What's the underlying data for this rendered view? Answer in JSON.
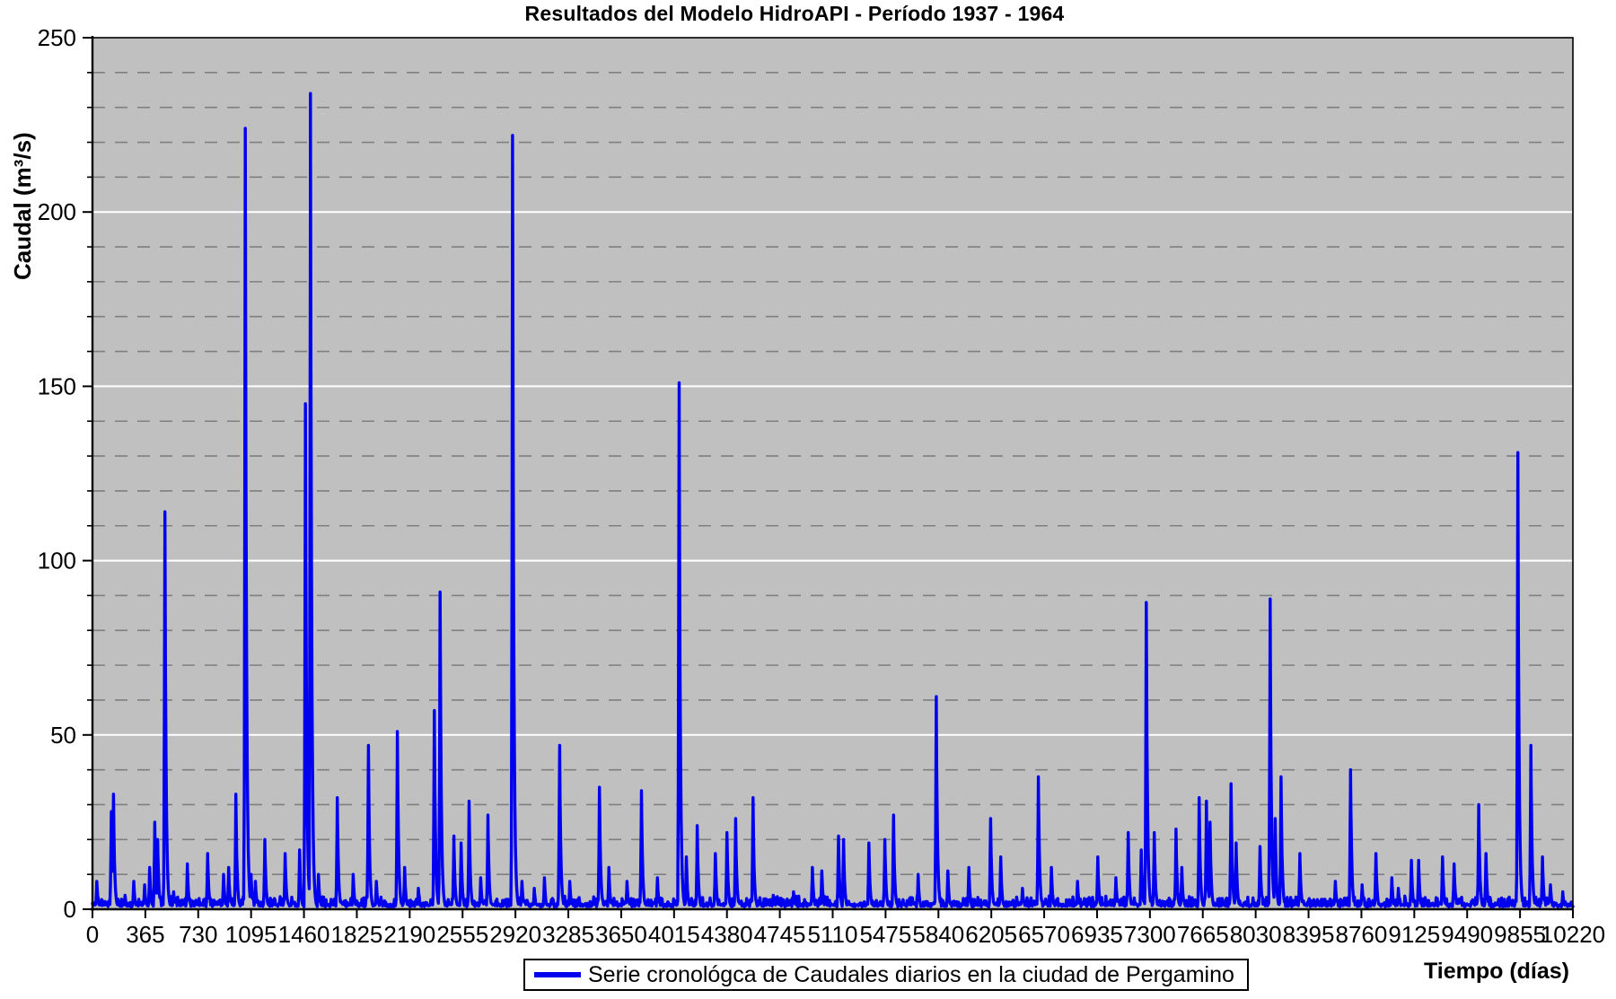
{
  "title": "Resultados del Modelo HidroAPI - Período 1937 - 1964",
  "y_axis": {
    "label": "Caudal (m³/s)",
    "min": 0,
    "max": 250,
    "major_step": 50,
    "minor_step": 10
  },
  "x_axis": {
    "label": "Tiempo (días)",
    "min": 0,
    "max": 10220,
    "major_step": 365
  },
  "legend": {
    "label": "Serie cronológca de Caudales diarios en la ciudad de Pergamino"
  },
  "colors": {
    "series": "#0000EE",
    "plot_background": "#C0C0C0",
    "major_gridline": "#FFFFFF",
    "minor_gridline": "#7F7F7F",
    "axis": "#000000",
    "page_background": "#FFFFFF",
    "text": "#000000"
  },
  "chart_data": {
    "type": "line",
    "title": "Resultados del Modelo HidroAPI - Período 1937 - 1964",
    "xlabel": "Tiempo (días)",
    "ylabel": "Caudal (m³/s)",
    "xlim": [
      0,
      10220
    ],
    "ylim": [
      0,
      250
    ],
    "x_ticks": [
      0,
      365,
      730,
      1095,
      1460,
      1825,
      2190,
      2555,
      2920,
      3285,
      3650,
      4015,
      4380,
      4745,
      5110,
      5475,
      5840,
      6205,
      6570,
      6935,
      7300,
      7665,
      8030,
      8395,
      8760,
      9125,
      9490,
      9855,
      10220
    ],
    "y_ticks": [
      0,
      50,
      100,
      150,
      200,
      250
    ],
    "grid": {
      "major": "solid-white",
      "minor": "dashed-gray-every-10"
    },
    "legend_position": "bottom-center",
    "series": [
      {
        "name": "Serie cronológca de Caudales diarios en la ciudad de Pergamino",
        "color": "#0000EE",
        "style": "spiky daily discharge hydrograph; baseline ~1-3 m³/s with sharp flood peaks",
        "baseline_mean": 1.5,
        "peaks_day_value": [
          [
            30,
            8
          ],
          [
            130,
            28
          ],
          [
            145,
            33
          ],
          [
            225,
            4
          ],
          [
            285,
            8
          ],
          [
            360,
            7
          ],
          [
            395,
            12
          ],
          [
            430,
            25
          ],
          [
            450,
            20
          ],
          [
            500,
            114
          ],
          [
            560,
            5
          ],
          [
            655,
            13
          ],
          [
            795,
            16
          ],
          [
            905,
            10
          ],
          [
            940,
            12
          ],
          [
            990,
            33
          ],
          [
            1055,
            224
          ],
          [
            1095,
            10
          ],
          [
            1125,
            8
          ],
          [
            1190,
            20
          ],
          [
            1330,
            16
          ],
          [
            1430,
            17
          ],
          [
            1470,
            145
          ],
          [
            1505,
            234
          ],
          [
            1560,
            10
          ],
          [
            1690,
            32
          ],
          [
            1800,
            10
          ],
          [
            1905,
            47
          ],
          [
            1960,
            8
          ],
          [
            2105,
            51
          ],
          [
            2155,
            12
          ],
          [
            2250,
            6
          ],
          [
            2360,
            57
          ],
          [
            2400,
            91
          ],
          [
            2495,
            21
          ],
          [
            2545,
            19
          ],
          [
            2600,
            31
          ],
          [
            2680,
            9
          ],
          [
            2730,
            27
          ],
          [
            2900,
            222
          ],
          [
            2965,
            8
          ],
          [
            3050,
            6
          ],
          [
            3120,
            9
          ],
          [
            3225,
            47
          ],
          [
            3295,
            8
          ],
          [
            3500,
            35
          ],
          [
            3565,
            12
          ],
          [
            3690,
            8
          ],
          [
            3790,
            34
          ],
          [
            3900,
            9
          ],
          [
            4050,
            151
          ],
          [
            4100,
            15
          ],
          [
            4175,
            24
          ],
          [
            4300,
            16
          ],
          [
            4380,
            22
          ],
          [
            4440,
            26
          ],
          [
            4560,
            32
          ],
          [
            4700,
            4
          ],
          [
            4840,
            5
          ],
          [
            4970,
            12
          ],
          [
            5035,
            11
          ],
          [
            5150,
            21
          ],
          [
            5185,
            20
          ],
          [
            5360,
            19
          ],
          [
            5470,
            20
          ],
          [
            5530,
            27
          ],
          [
            5700,
            10
          ],
          [
            5825,
            61
          ],
          [
            5905,
            11
          ],
          [
            6050,
            12
          ],
          [
            6200,
            26
          ],
          [
            6270,
            15
          ],
          [
            6420,
            6
          ],
          [
            6530,
            38
          ],
          [
            6620,
            12
          ],
          [
            6800,
            8
          ],
          [
            6940,
            15
          ],
          [
            7065,
            9
          ],
          [
            7150,
            22
          ],
          [
            7240,
            17
          ],
          [
            7275,
            88
          ],
          [
            7330,
            22
          ],
          [
            7480,
            23
          ],
          [
            7520,
            12
          ],
          [
            7640,
            32
          ],
          [
            7690,
            31
          ],
          [
            7715,
            25
          ],
          [
            7860,
            36
          ],
          [
            7895,
            19
          ],
          [
            8060,
            18
          ],
          [
            8130,
            89
          ],
          [
            8165,
            26
          ],
          [
            8205,
            38
          ],
          [
            8335,
            16
          ],
          [
            8580,
            8
          ],
          [
            8685,
            40
          ],
          [
            8765,
            7
          ],
          [
            8860,
            16
          ],
          [
            8970,
            9
          ],
          [
            9015,
            6
          ],
          [
            9105,
            14
          ],
          [
            9155,
            14
          ],
          [
            9320,
            15
          ],
          [
            9400,
            13
          ],
          [
            9570,
            30
          ],
          [
            9620,
            16
          ],
          [
            9840,
            131
          ],
          [
            9930,
            47
          ],
          [
            10010,
            15
          ],
          [
            10065,
            7
          ],
          [
            10150,
            5
          ]
        ]
      }
    ]
  }
}
